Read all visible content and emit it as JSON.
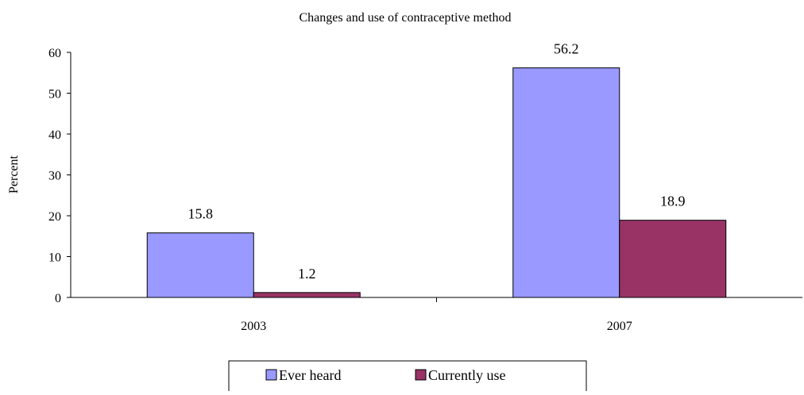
{
  "chart_data": {
    "type": "bar",
    "title": "Changes and use of contraceptive method",
    "xlabel": "",
    "ylabel": "Percent",
    "categories": [
      "2003",
      "2007"
    ],
    "series": [
      {
        "name": "Ever heard",
        "values": [
          15.8,
          56.2
        ],
        "color": "#9999ff"
      },
      {
        "name": "Currently use",
        "values": [
          1.2,
          18.9
        ],
        "color": "#993366"
      }
    ],
    "ylim": [
      0,
      60
    ],
    "yticks": [
      0,
      10,
      20,
      30,
      40,
      50,
      60
    ],
    "data_labels": true,
    "grid": false,
    "legend": {
      "position": "bottom"
    }
  }
}
